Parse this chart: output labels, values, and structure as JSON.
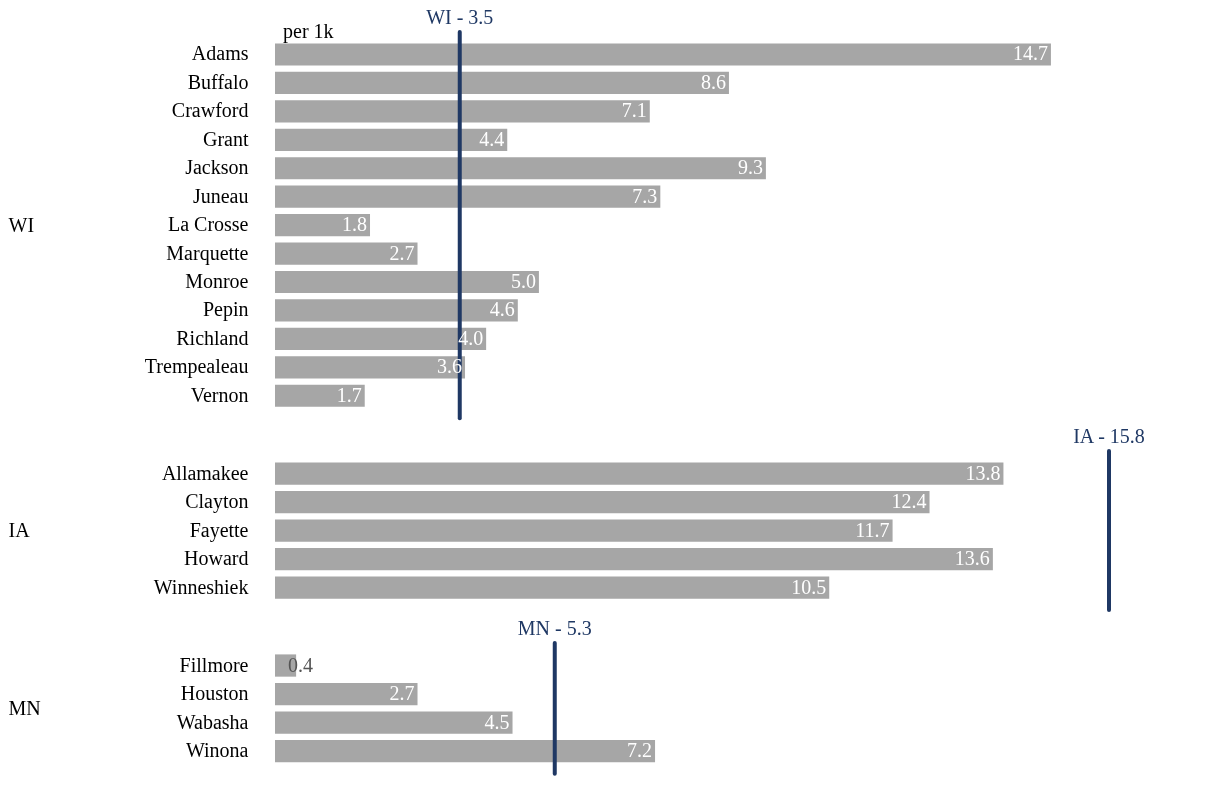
{
  "chart_data": [
    {
      "type": "bar",
      "orientation": "horizontal",
      "ylabel": "WI",
      "categories": [
        "Adams",
        "Buffalo",
        "Crawford",
        "Grant",
        "Jackson",
        "Juneau",
        "La Crosse",
        "Marquette",
        "Monroe",
        "Pepin",
        "Richland",
        "Trempealeau",
        "Vernon"
      ],
      "values": [
        14.7,
        8.6,
        7.1,
        4.4,
        9.3,
        7.3,
        1.8,
        2.7,
        5.0,
        4.6,
        4.0,
        3.6,
        1.7
      ],
      "value_labels": [
        "14.7",
        "8.6",
        "7.1",
        "4.4",
        "9.3",
        "7.3",
        "1.8",
        "2.7",
        "5.0",
        "4.6",
        "4.0",
        "3.6",
        "1.7"
      ],
      "color": "#a6a6a6",
      "tick_labels": "y",
      "annotations": [
        "per 1k"
      ],
      "ref_lines": [
        {
          "axis": "x",
          "value": 3.5,
          "label": "WI - 3.5",
          "color": "#1f3864"
        }
      ]
    },
    {
      "type": "bar",
      "orientation": "horizontal",
      "ylabel": "IA",
      "categories": [
        "Allamakee",
        "Clayton",
        "Fayette",
        "Howard",
        "Winneshiek"
      ],
      "values": [
        13.8,
        12.4,
        11.7,
        13.6,
        10.5
      ],
      "value_labels": [
        "13.8",
        "12.4",
        "11.7",
        "13.6",
        "10.5"
      ],
      "color": "#a6a6a6",
      "tick_labels": "y",
      "ref_lines": [
        {
          "axis": "x",
          "value": 15.8,
          "label": "IA - 15.8",
          "color": "#1f3864"
        }
      ]
    },
    {
      "type": "bar",
      "orientation": "horizontal",
      "ylabel": "MN",
      "categories": [
        "Fillmore",
        "Houston",
        "Wabasha",
        "Winona"
      ],
      "values": [
        0.4,
        2.7,
        4.5,
        7.2
      ],
      "value_labels": [
        "0.4",
        "2.7",
        "4.5",
        "7.2"
      ],
      "color": "#a6a6a6",
      "tick_labels": "y",
      "ref_lines": [
        {
          "axis": "x",
          "value": 5.3,
          "label": "MN - 5.3",
          "color": "#1f3864"
        }
      ]
    }
  ]
}
